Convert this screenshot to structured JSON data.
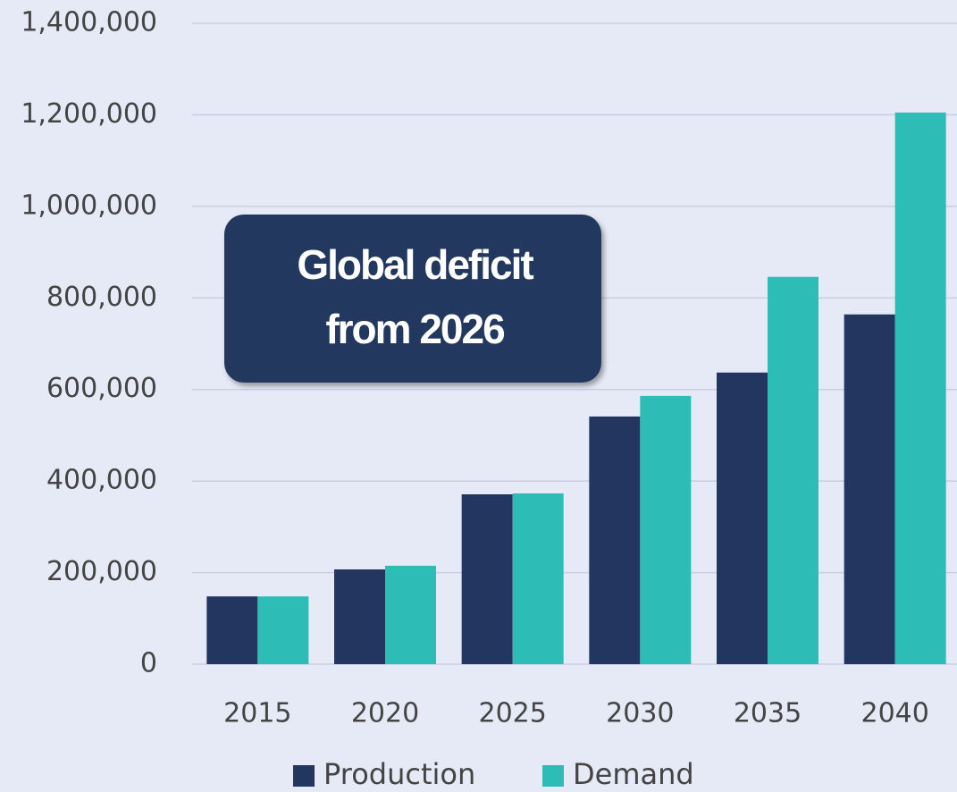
{
  "chart_data": {
    "type": "bar",
    "annotation": [
      "Global deficit",
      "from 2026"
    ],
    "categories": [
      "2015",
      "2020",
      "2025",
      "2030",
      "2035",
      "2040"
    ],
    "series": [
      {
        "name": "Production",
        "color": "#22365f",
        "values": [
          148000,
          207000,
          371000,
          541000,
          637000,
          764000
        ]
      },
      {
        "name": "Demand",
        "color": "#2dbdb6",
        "values": [
          148000,
          215000,
          373000,
          586000,
          846000,
          1205000
        ]
      }
    ],
    "ylim": [
      0,
      1400000
    ],
    "yticks": [
      0,
      {
        "value": 200000,
        "label": "200,000"
      },
      {
        "value": 400000,
        "label": "400,000"
      },
      {
        "value": 600000,
        "label": "600,000"
      },
      {
        "value": 800000,
        "label": "800,000"
      },
      {
        "value": 1000000,
        "label": "1,000,000"
      },
      {
        "value": 1200000,
        "label": "1,200,000"
      },
      {
        "value": 1400000,
        "label": "1,400,000"
      }
    ],
    "grid": true,
    "legend": "bottom"
  }
}
